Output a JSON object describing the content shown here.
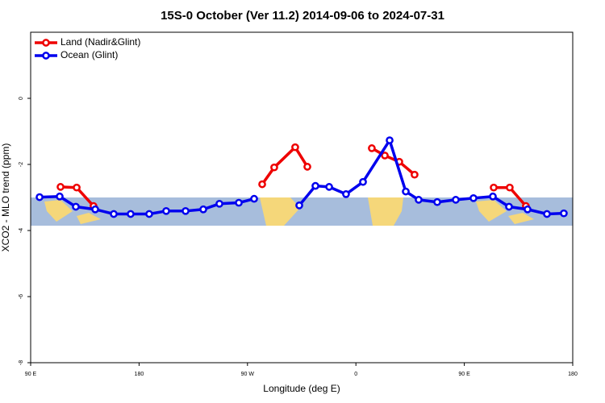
{
  "chart_data": {
    "type": "line",
    "title": "15S-0 October (Ver 11.2)   2014-09-06 to 2024-07-31",
    "x_label": "Longitude (deg E)",
    "y_label": "XCO2 - MLO trend (ppm)",
    "xlim": [
      90,
      540
    ],
    "ylim": [
      -8,
      2
    ],
    "xticks": [
      {
        "value": 90,
        "label": "90 E"
      },
      {
        "value": 180,
        "label": "180"
      },
      {
        "value": 270,
        "label": "90 W"
      },
      {
        "value": 360,
        "label": "0"
      },
      {
        "value": 450,
        "label": "90 E"
      },
      {
        "value": 540,
        "label": "180"
      }
    ],
    "yticks": [
      -8,
      -6,
      -4,
      -2,
      0
    ],
    "legend": "top-left",
    "series": [
      {
        "name": "Land (Nadir&Glint)",
        "color": "#ee0000",
        "x": [
          114.8,
          128.2,
          142.2,
          null,
          282.2,
          292.2,
          309.6,
          319.7,
          null,
          373.2,
          384,
          396,
          408.7,
          null,
          474.4,
          487.7,
          501.1
        ],
        "values": [
          -2.68,
          -2.7,
          -3.26,
          null,
          -2.6,
          -2.09,
          -1.48,
          -2.07,
          null,
          -1.51,
          -1.73,
          -1.92,
          -2.31,
          null,
          -2.7,
          -2.7,
          -3.26
        ]
      },
      {
        "name": "Ocean (Glint)",
        "color": "#0000ee",
        "x": [
          97.4,
          114.1,
          127.5,
          143.6,
          159,
          173,
          188.4,
          202.5,
          218.6,
          233.3,
          246.7,
          262.8,
          275.5,
          null,
          313,
          326.4,
          337.8,
          351.8,
          365.9,
          388,
          401.4,
          412.1,
          427.5,
          442.9,
          457.6,
          473.7,
          487.1,
          502.5,
          518.6,
          532.6
        ],
        "values": [
          -2.99,
          -2.97,
          -3.28,
          -3.36,
          -3.5,
          -3.5,
          -3.5,
          -3.41,
          -3.41,
          -3.36,
          -3.19,
          -3.16,
          -3.04,
          null,
          -3.24,
          -2.65,
          -2.68,
          -2.9,
          -2.53,
          -1.27,
          -2.82,
          -3.07,
          -3.14,
          -3.07,
          -3.02,
          -2.97,
          -3.28,
          -3.36,
          -3.5,
          -3.48
        ]
      }
    ]
  }
}
